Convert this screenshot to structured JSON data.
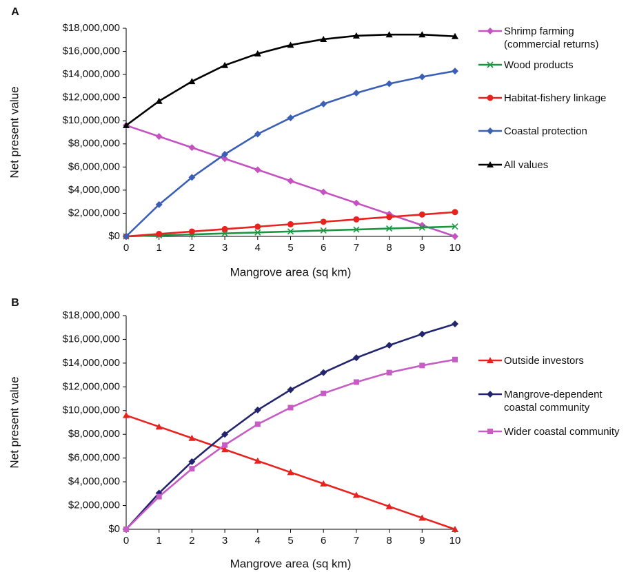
{
  "chart_data": [
    {
      "type": "line",
      "panel_label": "A",
      "xlabel": "Mangrove area (sq km)",
      "ylabel": "Net present value",
      "x": [
        0,
        1,
        2,
        3,
        4,
        5,
        6,
        7,
        8,
        9,
        10
      ],
      "xlim": [
        0,
        10
      ],
      "xticks": [
        0,
        1,
        2,
        3,
        4,
        5,
        6,
        7,
        8,
        9,
        10
      ],
      "ylim": [
        0,
        18000000
      ],
      "yticks": [
        {
          "value": 0,
          "label": "$0"
        },
        {
          "value": 2000000,
          "label": "$2,000,000"
        },
        {
          "value": 4000000,
          "label": "$4,000,000"
        },
        {
          "value": 6000000,
          "label": "$6,000,000"
        },
        {
          "value": 8000000,
          "label": "$8,000,000"
        },
        {
          "value": 10000000,
          "label": "$10,000,000"
        },
        {
          "value": 12000000,
          "label": "$12,000,000"
        },
        {
          "value": 14000000,
          "label": "$14,000,000"
        },
        {
          "value": 16000000,
          "label": "$16,000,000"
        },
        {
          "value": 18000000,
          "label": "$18,000,000"
        }
      ],
      "series": [
        {
          "name": "Shrimp farming (commercial returns)",
          "color": "#c452c0",
          "marker": "diamond",
          "values": [
            9600000,
            8640000,
            7680000,
            6720000,
            5760000,
            4800000,
            3840000,
            2880000,
            1920000,
            960000,
            0
          ]
        },
        {
          "name": "Wood products",
          "color": "#1b9640",
          "marker": "x",
          "values": [
            0,
            85000,
            170000,
            255000,
            340000,
            425000,
            510000,
            595000,
            680000,
            765000,
            850000
          ]
        },
        {
          "name": "Habitat-fishery linkage",
          "color": "#e8221f",
          "marker": "circle",
          "values": [
            0,
            210000,
            420000,
            630000,
            840000,
            1050000,
            1260000,
            1470000,
            1680000,
            1890000,
            2100000
          ]
        },
        {
          "name": "Coastal protection",
          "color": "#3a5fb4",
          "marker": "diamond",
          "values": [
            0,
            2750000,
            5100000,
            7100000,
            8850000,
            10250000,
            11450000,
            12400000,
            13200000,
            13800000,
            14300000
          ]
        },
        {
          "name": "All values",
          "color": "#000000",
          "marker": "triangle",
          "values": [
            9600000,
            11700000,
            13400000,
            14800000,
            15800000,
            16550000,
            17050000,
            17350000,
            17450000,
            17450000,
            17300000
          ]
        }
      ]
    },
    {
      "type": "line",
      "panel_label": "B",
      "xlabel": "Mangrove area (sq km)",
      "ylabel": "Net present value",
      "x": [
        0,
        1,
        2,
        3,
        4,
        5,
        6,
        7,
        8,
        9,
        10
      ],
      "xlim": [
        0,
        10
      ],
      "xticks": [
        0,
        1,
        2,
        3,
        4,
        5,
        6,
        7,
        8,
        9,
        10
      ],
      "ylim": [
        0,
        18000000
      ],
      "yticks": [
        {
          "value": 0,
          "label": "$0"
        },
        {
          "value": 2000000,
          "label": "$2,000,000"
        },
        {
          "value": 4000000,
          "label": "$4,000,000"
        },
        {
          "value": 6000000,
          "label": "$6,000,000"
        },
        {
          "value": 8000000,
          "label": "$8,000,000"
        },
        {
          "value": 10000000,
          "label": "$10,000,000"
        },
        {
          "value": 12000000,
          "label": "$12,000,000"
        },
        {
          "value": 14000000,
          "label": "$14,000,000"
        },
        {
          "value": 16000000,
          "label": "$16,000,000"
        },
        {
          "value": 18000000,
          "label": "$18,000,000"
        }
      ],
      "series": [
        {
          "name": "Outside investors",
          "color": "#e8221f",
          "marker": "triangle",
          "values": [
            9600000,
            8640000,
            7680000,
            6720000,
            5760000,
            4800000,
            3840000,
            2880000,
            1920000,
            960000,
            0
          ]
        },
        {
          "name": "Mangrove-dependent coastal community",
          "color": "#23246e",
          "marker": "diamond",
          "values": [
            0,
            3050000,
            5700000,
            8000000,
            10050000,
            11750000,
            13200000,
            14450000,
            15500000,
            16450000,
            17300000
          ]
        },
        {
          "name": "Wider coastal community",
          "color": "#c65cc4",
          "marker": "square",
          "values": [
            0,
            2750000,
            5100000,
            7100000,
            8850000,
            10250000,
            11450000,
            12400000,
            13200000,
            13800000,
            14300000
          ]
        }
      ]
    }
  ]
}
